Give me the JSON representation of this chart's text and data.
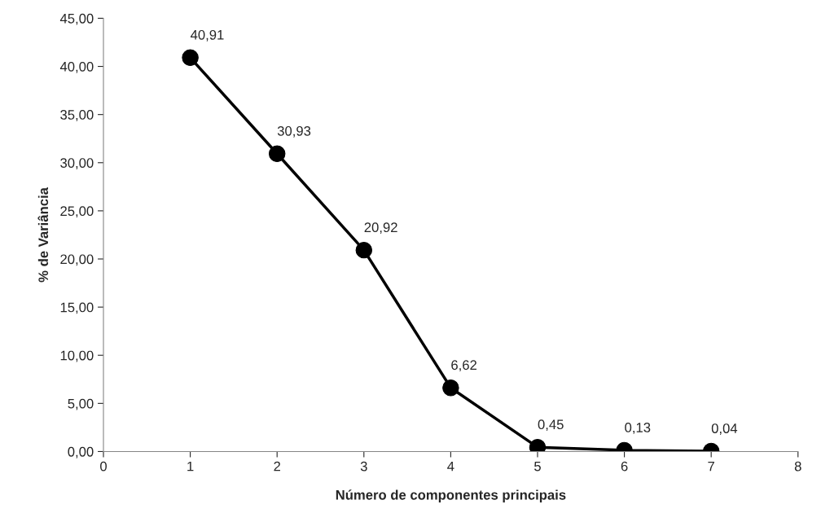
{
  "chart_data": {
    "type": "line",
    "xlabel": "Número de componentes principais",
    "ylabel": "% de Variância",
    "x": [
      1,
      2,
      3,
      4,
      5,
      6,
      7
    ],
    "series": [
      {
        "color": "#000000",
        "values": [
          40.91,
          30.93,
          20.92,
          6.62,
          0.45,
          0.13,
          0.04
        ],
        "value_labels": [
          "40,91",
          "30,93",
          "20,92",
          "6,62",
          "0,45",
          "0,13",
          "0,04"
        ]
      }
    ],
    "marker": "circle",
    "line_style": "solid",
    "grid": false,
    "legend": false,
    "xlim": [
      0,
      8
    ],
    "xticks": [
      0,
      1,
      2,
      3,
      4,
      5,
      6,
      7,
      8
    ],
    "ylim": [
      0,
      45
    ],
    "yticks": [
      {
        "value": 0,
        "label": "0,00"
      },
      {
        "value": 5,
        "label": "5,00"
      },
      {
        "value": 10,
        "label": "10,00"
      },
      {
        "value": 15,
        "label": "15,00"
      },
      {
        "value": 20,
        "label": "20,00"
      },
      {
        "value": 25,
        "label": "25,00"
      },
      {
        "value": 30,
        "label": "30,00"
      },
      {
        "value": 35,
        "label": "35,00"
      },
      {
        "value": 40,
        "label": "40,00"
      },
      {
        "value": 45,
        "label": "45,00"
      }
    ]
  }
}
